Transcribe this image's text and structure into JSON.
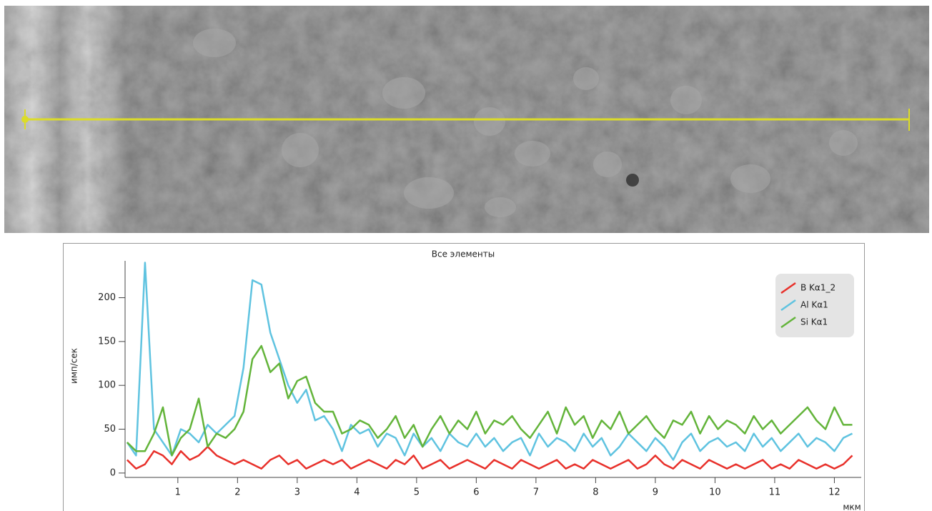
{
  "chart_data": {
    "type": "line",
    "title": "Все элементы",
    "xlabel": "мкм",
    "ylabel": "имп/сек",
    "xlim": [
      0.08,
      12.45
    ],
    "ylim": [
      -5,
      242
    ],
    "xticks": [
      1,
      2,
      3,
      4,
      5,
      6,
      7,
      8,
      9,
      10,
      11,
      12
    ],
    "yticks": [
      0,
      50,
      100,
      150,
      200
    ],
    "legend": "upper right",
    "x": [
      0.15,
      0.3,
      0.45,
      0.6,
      0.75,
      0.9,
      1.05,
      1.2,
      1.35,
      1.5,
      1.65,
      1.8,
      1.95,
      2.1,
      2.25,
      2.4,
      2.55,
      2.7,
      2.85,
      3.0,
      3.15,
      3.3,
      3.45,
      3.6,
      3.75,
      3.9,
      4.05,
      4.2,
      4.35,
      4.5,
      4.65,
      4.8,
      4.95,
      5.1,
      5.25,
      5.4,
      5.55,
      5.7,
      5.85,
      6.0,
      6.15,
      6.3,
      6.45,
      6.6,
      6.75,
      6.9,
      7.05,
      7.2,
      7.35,
      7.5,
      7.65,
      7.8,
      7.95,
      8.1,
      8.25,
      8.4,
      8.55,
      8.7,
      8.85,
      9.0,
      9.15,
      9.3,
      9.45,
      9.6,
      9.75,
      9.9,
      10.05,
      10.2,
      10.35,
      10.5,
      10.65,
      10.8,
      10.95,
      11.1,
      11.25,
      11.4,
      11.55,
      11.7,
      11.85,
      12.0,
      12.15,
      12.3
    ],
    "series": [
      {
        "name": "B Kα1_2",
        "color": "#e8302a",
        "values": [
          15,
          5,
          10,
          25,
          20,
          10,
          25,
          15,
          20,
          30,
          20,
          15,
          10,
          15,
          10,
          5,
          15,
          20,
          10,
          15,
          5,
          10,
          15,
          10,
          15,
          5,
          10,
          15,
          10,
          5,
          15,
          10,
          20,
          5,
          10,
          15,
          5,
          10,
          15,
          10,
          5,
          15,
          10,
          5,
          15,
          10,
          5,
          10,
          15,
          5,
          10,
          5,
          15,
          10,
          5,
          10,
          15,
          5,
          10,
          20,
          10,
          5,
          15,
          10,
          5,
          15,
          10,
          5,
          10,
          5,
          10,
          15,
          5,
          10,
          5,
          15,
          10,
          5,
          10,
          5,
          10,
          20
        ]
      },
      {
        "name": "Al Kα1",
        "color": "#5fc3e0",
        "values": [
          35,
          20,
          240,
          50,
          35,
          20,
          50,
          45,
          35,
          55,
          45,
          55,
          65,
          120,
          220,
          215,
          160,
          130,
          100,
          80,
          95,
          60,
          65,
          50,
          25,
          55,
          45,
          50,
          30,
          45,
          40,
          20,
          45,
          30,
          40,
          25,
          45,
          35,
          30,
          45,
          30,
          40,
          25,
          35,
          40,
          20,
          45,
          30,
          40,
          35,
          25,
          45,
          30,
          40,
          20,
          30,
          45,
          35,
          25,
          40,
          30,
          15,
          35,
          45,
          25,
          35,
          40,
          30,
          35,
          25,
          45,
          30,
          40,
          25,
          35,
          45,
          30,
          40,
          35,
          25,
          40,
          45
        ]
      },
      {
        "name": "Si Kα1",
        "color": "#63b43a",
        "values": [
          35,
          25,
          25,
          45,
          75,
          20,
          40,
          50,
          85,
          30,
          45,
          40,
          50,
          70,
          130,
          145,
          115,
          125,
          85,
          105,
          110,
          80,
          70,
          70,
          45,
          50,
          60,
          55,
          40,
          50,
          65,
          40,
          55,
          30,
          50,
          65,
          45,
          60,
          50,
          70,
          45,
          60,
          55,
          65,
          50,
          40,
          55,
          70,
          45,
          75,
          55,
          65,
          40,
          60,
          50,
          70,
          45,
          55,
          65,
          50,
          40,
          60,
          55,
          70,
          45,
          65,
          50,
          60,
          55,
          45,
          65,
          50,
          60,
          45,
          55,
          65,
          75,
          60,
          50,
          75,
          55,
          55
        ]
      }
    ]
  }
}
